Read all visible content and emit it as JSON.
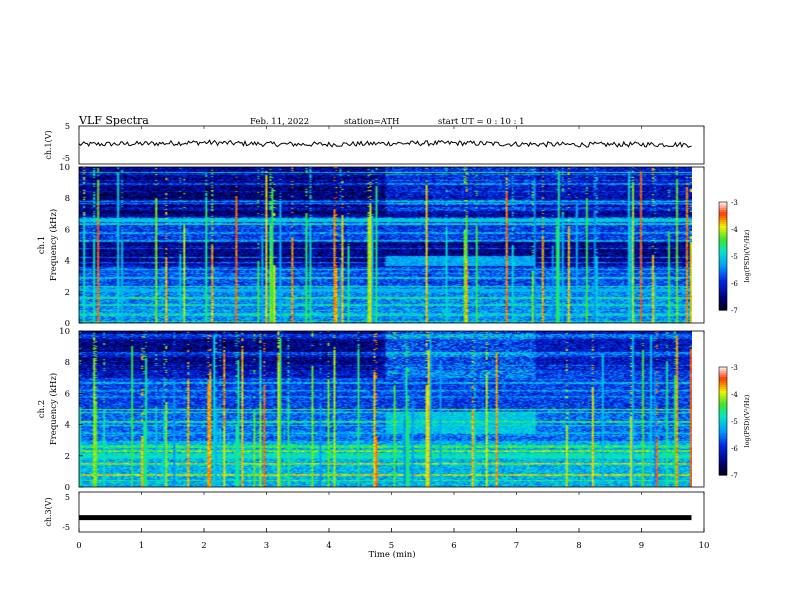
{
  "header": {
    "title": "VLF  Spectra",
    "date": "Feb. 11, 2022",
    "station": "station=ATH",
    "start_ut": "start  UT  =    0  : 10 : 1"
  },
  "chart_data": [
    {
      "type": "line",
      "ylabel": "ch.1(V)",
      "ylim": [
        -5,
        5
      ],
      "yticks": [
        "5",
        "-5"
      ],
      "note": "noisy waveform hovering near 0 V",
      "x": [
        0,
        1,
        2,
        3,
        4,
        5,
        6,
        7,
        8,
        9,
        9.8
      ],
      "values": [
        0.2,
        0.4,
        0.8,
        0.3,
        0.2,
        0.5,
        0.6,
        0.3,
        0.1,
        0.2,
        0.1
      ]
    },
    {
      "type": "heatmap",
      "ylabel": "ch.1\nFrequency (kHz)",
      "ylim": [
        0,
        10
      ],
      "yticks": [
        "0",
        "2",
        "4",
        "6",
        "8",
        "10"
      ],
      "colorbar": {
        "label": "log(PSD)(V²/Hz)",
        "range": [
          -7,
          -3
        ],
        "ticks": [
          "-3",
          "-4",
          "-5",
          "-6",
          "-7"
        ]
      },
      "features": [
        {
          "kind": "band",
          "f_khz": 6.6,
          "level": -5
        },
        {
          "kind": "band",
          "f_khz": 2.1,
          "level": -5.2
        },
        {
          "kind": "enhancement",
          "t_min": [
            4.9,
            7.3
          ],
          "f_khz": [
            3.7,
            4.3
          ],
          "level": -5.2
        }
      ]
    },
    {
      "type": "heatmap",
      "ylabel": "ch.2\nFrequency (kHz)",
      "ylim": [
        0,
        10
      ],
      "yticks": [
        "0",
        "2",
        "4",
        "6",
        "8",
        "10"
      ],
      "colorbar": {
        "label": "log(PSD)(V²/Hz)",
        "range": [
          -7,
          -3
        ],
        "ticks": [
          "-3",
          "-4",
          "-5",
          "-6",
          "-7"
        ]
      },
      "features": [
        {
          "kind": "band",
          "f_khz": 2.0,
          "level": -4.8
        },
        {
          "kind": "enhancement",
          "t_min": [
            4.9,
            7.3
          ],
          "f_khz": [
            3.5,
            4.8
          ],
          "level": -5.0
        }
      ]
    },
    {
      "type": "line",
      "ylabel": "ch.3(V)",
      "ylim": [
        -5,
        5
      ],
      "yticks": [
        "5",
        "-5"
      ],
      "xlabel": "Time  (min)",
      "xlim": [
        0,
        10
      ],
      "xticks": [
        "0",
        "1",
        "2",
        "3",
        "4",
        "5",
        "6",
        "7",
        "8",
        "9",
        "10"
      ],
      "x": [
        0,
        9.8
      ],
      "values": [
        -2,
        -2
      ]
    }
  ]
}
